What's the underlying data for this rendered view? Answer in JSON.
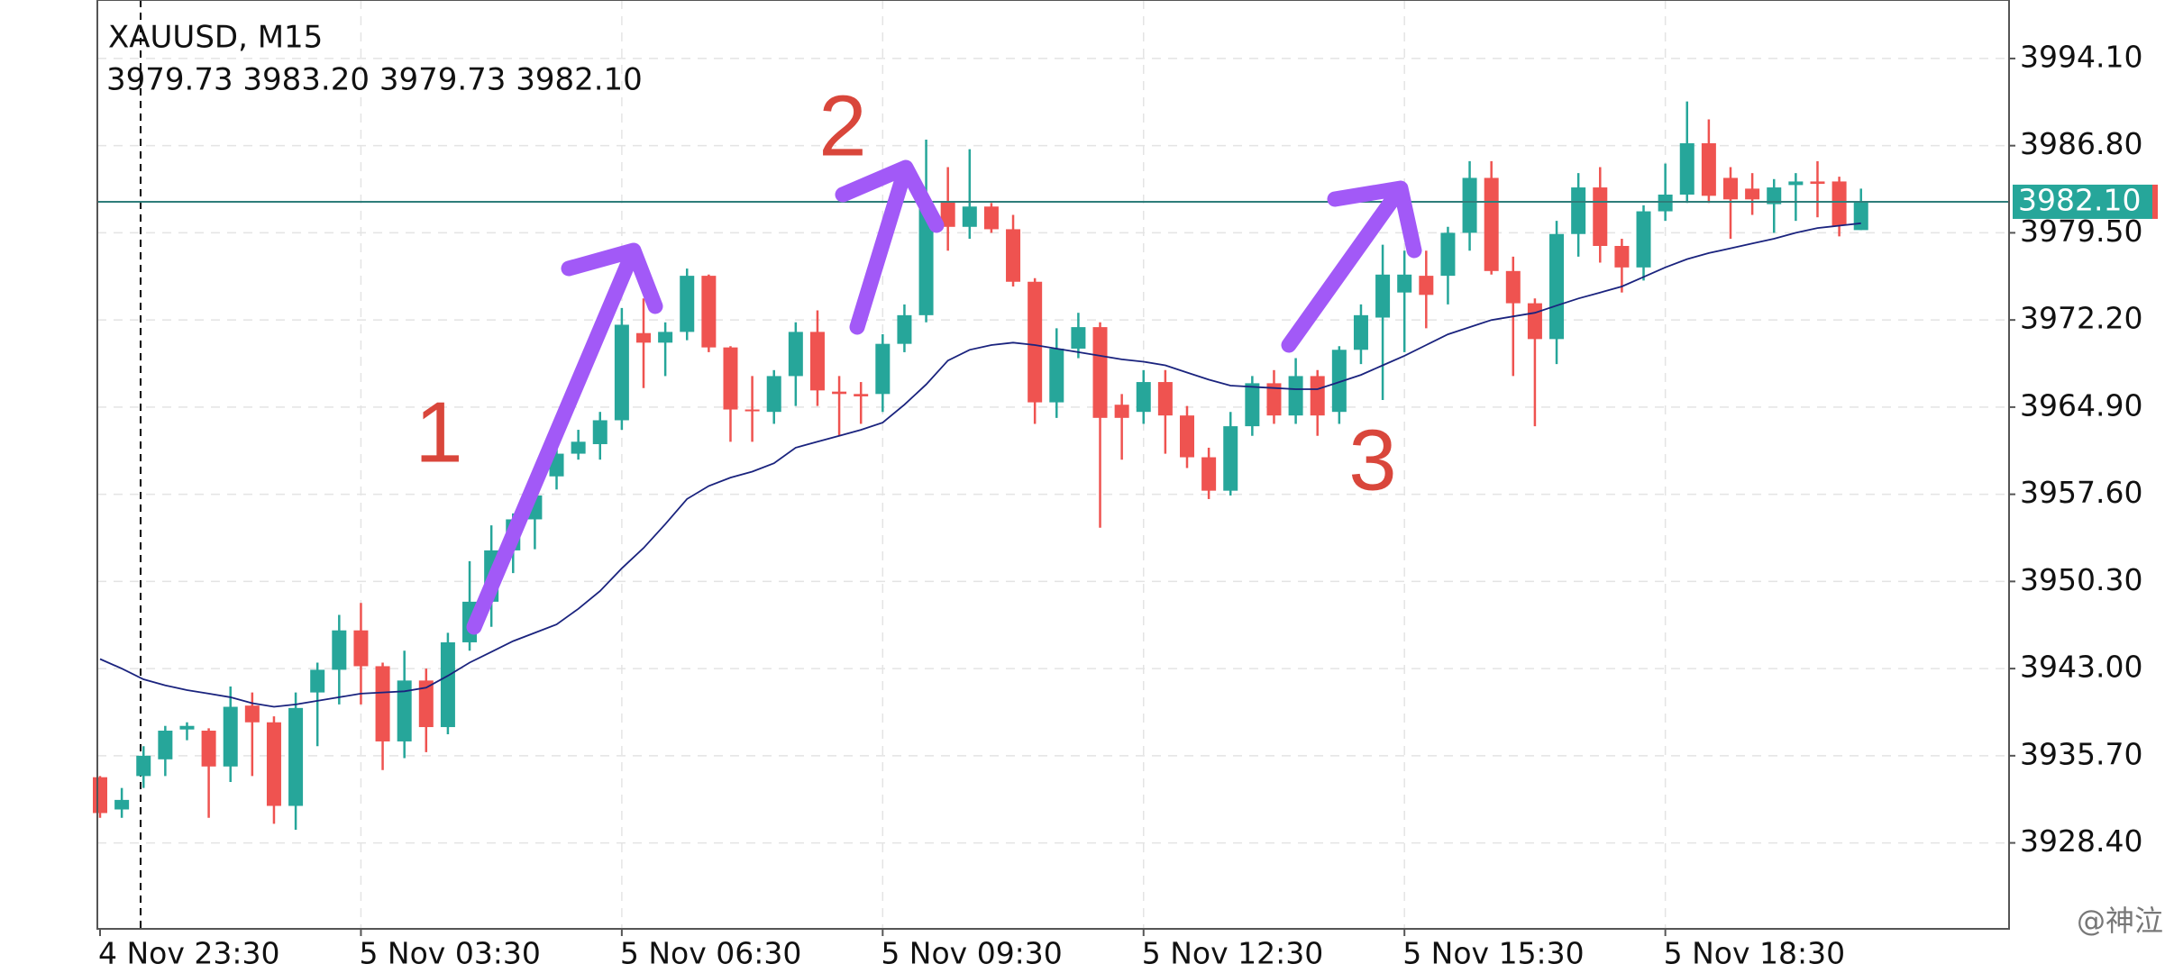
{
  "chart_data": {
    "type": "candlestick",
    "title": "XAUUSD, M15",
    "ohlc_label": "3979.73 3983.20 3979.73 3982.10",
    "watermark": "@神泣",
    "annotations": [
      "1",
      "2",
      "3"
    ],
    "up_color": "#26a69a",
    "down_color": "#ef5350",
    "ma_color": "#1a237e",
    "grid": true,
    "categories": [
      "4 Nov 23:30",
      null,
      null,
      null,
      null,
      null,
      null,
      null,
      null,
      null,
      null,
      null,
      "5 Nov 03:30",
      null,
      null,
      null,
      null,
      null,
      null,
      null,
      null,
      null,
      null,
      null,
      "5 Nov 06:30",
      null,
      null,
      null,
      null,
      null,
      null,
      null,
      null,
      null,
      null,
      null,
      "5 Nov 09:30",
      null,
      null,
      null,
      null,
      null,
      null,
      null,
      null,
      null,
      null,
      null,
      "5 Nov 12:30",
      null,
      null,
      null,
      null,
      null,
      null,
      null,
      null,
      null,
      null,
      null,
      "5 Nov 15:30",
      null,
      null,
      null,
      null,
      null,
      null,
      null,
      null,
      null,
      null,
      null,
      "5 Nov 18:30",
      null,
      null,
      null,
      null,
      null,
      null,
      null,
      null,
      null
    ],
    "open": [
      3933.9,
      3931.2,
      3934.0,
      3935.4,
      3937.9,
      3937.8,
      3934.8,
      3939.9,
      3938.5,
      3931.5,
      3941.0,
      3942.9,
      3946.2,
      3943.2,
      3936.9,
      3942.0,
      3938.1,
      3945.2,
      3948.6,
      3952.9,
      3955.5,
      3959.1,
      3961.0,
      3961.8,
      3963.8,
      3971.1,
      3970.3,
      3971.2,
      3975.9,
      3969.9,
      3964.7,
      3964.5,
      3967.5,
      3971.2,
      3966.2,
      3966.0,
      3966.0,
      3970.2,
      3972.6,
      3982.1,
      3980.0,
      3981.7,
      3979.8,
      3975.4,
      3965.3,
      3969.8,
      3971.6,
      3965.1,
      3964.5,
      3967.0,
      3964.2,
      3960.7,
      3957.9,
      3963.3,
      3966.9,
      3964.2,
      3967.5,
      3964.5,
      3969.7,
      3972.4,
      3974.5,
      3975.9,
      3975.9,
      3979.5,
      3984.1,
      3976.3,
      3973.6,
      3970.6,
      3979.4,
      3983.3,
      3978.4,
      3976.6,
      3981.3,
      3982.7,
      3987.0,
      3984.1,
      3983.2,
      3981.9,
      3983.5,
      3983.8,
      3983.8,
      3979.73
    ],
    "high": [
      3934.0,
      3933.0,
      3936.5,
      3938.2,
      3938.5,
      3938.0,
      3941.5,
      3941.0,
      3939.0,
      3941.0,
      3943.5,
      3947.5,
      3948.5,
      3943.5,
      3944.5,
      3943.0,
      3946.0,
      3952.0,
      3955.0,
      3956.0,
      3958.0,
      3962.0,
      3963.0,
      3964.5,
      3973.2,
      3974.0,
      3972.0,
      3976.5,
      3976.0,
      3970.0,
      3967.5,
      3968.0,
      3972.0,
      3973.0,
      3967.5,
      3967.0,
      3971.0,
      3973.5,
      3987.3,
      3985.0,
      3986.5,
      3982.0,
      3981.0,
      3975.7,
      3971.5,
      3972.8,
      3972.0,
      3966.0,
      3968.0,
      3968.0,
      3965.0,
      3961.5,
      3964.5,
      3967.5,
      3968.0,
      3969.0,
      3968.0,
      3970.0,
      3973.5,
      3978.5,
      3978.0,
      3978.0,
      3980.0,
      3985.5,
      3985.5,
      3977.5,
      3974.0,
      3980.5,
      3984.5,
      3985.0,
      3979.0,
      3981.8,
      3985.3,
      3990.5,
      3989.0,
      3985.0,
      3984.5,
      3984.0,
      3984.5,
      3985.5,
      3984.2,
      3983.2
    ],
    "low": [
      3930.5,
      3930.5,
      3933.0,
      3934.0,
      3937.0,
      3930.5,
      3933.5,
      3934.0,
      3930.0,
      3929.5,
      3936.5,
      3940.0,
      3940.0,
      3934.5,
      3935.5,
      3936.0,
      3937.5,
      3944.5,
      3946.5,
      3951.0,
      3953.0,
      3958.0,
      3960.5,
      3960.5,
      3963.0,
      3966.5,
      3967.5,
      3970.5,
      3969.5,
      3962.0,
      3962.0,
      3963.5,
      3965.0,
      3965.0,
      3962.5,
      3963.5,
      3964.5,
      3969.5,
      3972.0,
      3978.0,
      3979.0,
      3979.5,
      3975.0,
      3963.5,
      3964.0,
      3969.0,
      3954.8,
      3960.5,
      3963.5,
      3961.0,
      3959.8,
      3957.2,
      3957.5,
      3962.5,
      3963.5,
      3963.5,
      3962.5,
      3963.5,
      3968.5,
      3965.5,
      3969.5,
      3971.5,
      3973.5,
      3978.0,
      3976.0,
      3967.5,
      3963.3,
      3968.5,
      3977.5,
      3977.0,
      3974.5,
      3975.5,
      3980.5,
      3982.0,
      3982.0,
      3979.0,
      3981.0,
      3979.5,
      3980.5,
      3980.8,
      3979.2,
      3979.73
    ],
    "close": [
      3930.9,
      3932.0,
      3935.7,
      3937.8,
      3938.2,
      3934.8,
      3939.8,
      3938.5,
      3931.5,
      3939.7,
      3942.9,
      3946.2,
      3943.2,
      3936.9,
      3942.0,
      3938.1,
      3945.2,
      3948.6,
      3952.9,
      3955.5,
      3957.5,
      3961.0,
      3962.0,
      3963.8,
      3971.8,
      3970.3,
      3971.2,
      3975.9,
      3969.9,
      3964.7,
      3964.6,
      3967.5,
      3971.2,
      3966.3,
      3966.0,
      3965.8,
      3970.2,
      3972.6,
      3981.8,
      3980.0,
      3981.7,
      3979.8,
      3975.4,
      3965.3,
      3969.8,
      3971.6,
      3964.0,
      3964.0,
      3967.0,
      3964.2,
      3960.7,
      3957.9,
      3963.3,
      3966.9,
      3964.2,
      3967.5,
      3964.2,
      3969.7,
      3972.6,
      3976.0,
      3976.0,
      3974.3,
      3979.5,
      3984.1,
      3976.3,
      3973.6,
      3970.6,
      3979.4,
      3983.3,
      3978.4,
      3976.6,
      3981.3,
      3982.7,
      3987.0,
      3982.6,
      3982.3,
      3982.3,
      3983.3,
      3983.8,
      3983.6,
      3980.1,
      3982.1
    ],
    "ma": [
      3943.8,
      3943.0,
      3942.1,
      3941.6,
      3941.2,
      3940.9,
      3940.6,
      3940.1,
      3939.8,
      3940.0,
      3940.3,
      3940.6,
      3940.9,
      3941.0,
      3941.1,
      3941.4,
      3942.4,
      3943.5,
      3944.4,
      3945.3,
      3946.0,
      3946.7,
      3948.0,
      3949.5,
      3951.4,
      3953.1,
      3955.1,
      3957.2,
      3958.3,
      3959.0,
      3959.5,
      3960.2,
      3961.5,
      3962.0,
      3962.5,
      3963.0,
      3963.6,
      3965.1,
      3966.8,
      3968.8,
      3969.7,
      3970.1,
      3970.3,
      3970.1,
      3969.8,
      3969.5,
      3969.2,
      3968.9,
      3968.7,
      3968.4,
      3967.8,
      3967.2,
      3966.7,
      3966.6,
      3966.5,
      3966.4,
      3966.4,
      3967.0,
      3967.6,
      3968.4,
      3969.2,
      3970.1,
      3971.0,
      3971.6,
      3972.2,
      3972.5,
      3972.8,
      3973.4,
      3974.0,
      3974.5,
      3975.0,
      3975.8,
      3976.6,
      3977.3,
      3977.8,
      3978.2,
      3978.6,
      3979.0,
      3979.5,
      3979.9,
      3980.1,
      3980.3
    ],
    "last_price": {
      "value": 3982.1,
      "label": "3982.10"
    },
    "ylim": [
      3921.2,
      3999.0
    ],
    "yticks": [
      {
        "value": 3994.1,
        "label": "3994.10"
      },
      {
        "value": 3986.8,
        "label": "3986.80"
      },
      {
        "value": 3979.5,
        "label": "3979.50"
      },
      {
        "value": 3972.2,
        "label": "3972.20"
      },
      {
        "value": 3964.9,
        "label": "3964.90"
      },
      {
        "value": 3957.6,
        "label": "3957.60"
      },
      {
        "value": 3950.3,
        "label": "3950.30"
      },
      {
        "value": 3943.0,
        "label": "3943.00"
      },
      {
        "value": 3935.7,
        "label": "3935.70"
      },
      {
        "value": 3928.4,
        "label": "3928.40"
      }
    ]
  }
}
